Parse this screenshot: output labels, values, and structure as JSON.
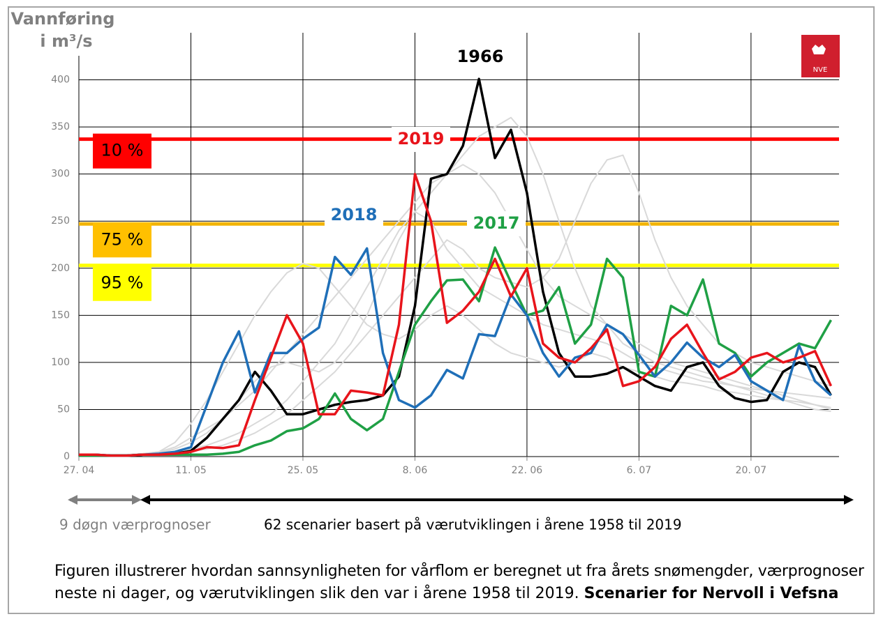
{
  "chart_data": {
    "type": "line",
    "y_label": [
      "Vannføring",
      "i m³/s"
    ],
    "logo": "NVE",
    "x": [
      0,
      2,
      4,
      6,
      8,
      10,
      12,
      14,
      16,
      18,
      20,
      22,
      24,
      26,
      28,
      30,
      32,
      34,
      36,
      38,
      40,
      42,
      44,
      46,
      48,
      50,
      52,
      54,
      56,
      58,
      60,
      62,
      64,
      66,
      68,
      70,
      72,
      74,
      76,
      78,
      80,
      82,
      84,
      86,
      88,
      90,
      92,
      94
    ],
    "xlim": [
      0,
      95
    ],
    "xticks": [
      {
        "value": 0,
        "label": "27. 04"
      },
      {
        "value": 14,
        "label": "11. 05"
      },
      {
        "value": 28,
        "label": "25. 05"
      },
      {
        "value": 42,
        "label": "8. 06"
      },
      {
        "value": 56,
        "label": "22. 06"
      },
      {
        "value": 70,
        "label": "6. 07"
      },
      {
        "value": 84,
        "label": "20. 07"
      }
    ],
    "ylim": [
      0,
      450
    ],
    "yticks": [
      0,
      50,
      100,
      150,
      200,
      250,
      300,
      350,
      400
    ],
    "grid": true,
    "series": [
      {
        "color": "#d9d9d9",
        "values": [
          2,
          2,
          2,
          2,
          3,
          5,
          10,
          20,
          30,
          40,
          55,
          70,
          90,
          110,
          130,
          150,
          170,
          190,
          210,
          230,
          250,
          270,
          290,
          300,
          310,
          300,
          280,
          250,
          220,
          190,
          170,
          160,
          150,
          140,
          130,
          120,
          110,
          100,
          95,
          90,
          85,
          80,
          75,
          70,
          65,
          60,
          55,
          50
        ]
      },
      {
        "color": "#d9d9d9",
        "values": [
          2,
          2,
          2,
          2,
          3,
          5,
          15,
          35,
          60,
          90,
          120,
          150,
          175,
          195,
          205,
          200,
          180,
          160,
          140,
          130,
          125,
          135,
          150,
          160,
          150,
          135,
          120,
          110,
          105,
          100,
          95,
          100,
          110,
          105,
          95,
          90,
          85,
          80,
          78,
          75,
          70,
          68,
          65,
          62,
          60,
          58,
          55,
          52
        ]
      },
      {
        "color": "#d9d9d9",
        "values": [
          1,
          1,
          1,
          1,
          2,
          3,
          5,
          8,
          12,
          18,
          25,
          35,
          45,
          60,
          80,
          100,
          120,
          150,
          180,
          210,
          240,
          260,
          280,
          300,
          320,
          340,
          350,
          360,
          340,
          300,
          250,
          200,
          160,
          140,
          120,
          110,
          100,
          95,
          90,
          85,
          80,
          75,
          70,
          65,
          60,
          55,
          50,
          48
        ]
      },
      {
        "color": "#d9d9d9",
        "values": [
          1,
          1,
          1,
          1,
          2,
          3,
          4,
          6,
          8,
          12,
          18,
          25,
          35,
          45,
          60,
          75,
          90,
          110,
          130,
          150,
          170,
          190,
          210,
          230,
          220,
          200,
          190,
          185,
          180,
          190,
          210,
          250,
          290,
          315,
          320,
          280,
          230,
          190,
          160,
          140,
          120,
          110,
          100,
          95,
          90,
          85,
          80,
          75
        ]
      },
      {
        "color": "#d9d9d9",
        "values": [
          2,
          2,
          2,
          2,
          3,
          4,
          8,
          15,
          25,
          40,
          60,
          80,
          95,
          100,
          95,
          90,
          100,
          120,
          150,
          190,
          230,
          260,
          250,
          220,
          200,
          180,
          170,
          160,
          150,
          140,
          135,
          130,
          125,
          120,
          110,
          100,
          95,
          90,
          85,
          80,
          78,
          75,
          72,
          70,
          68,
          66,
          64,
          62
        ]
      },
      {
        "name": "1966",
        "color": "#000000",
        "values": [
          2,
          2,
          1,
          1,
          2,
          2,
          3,
          6,
          20,
          40,
          60,
          90,
          70,
          45,
          45,
          50,
          55,
          58,
          60,
          65,
          85,
          160,
          295,
          300,
          330,
          401,
          317,
          347,
          280,
          175,
          110,
          85,
          85,
          88,
          95,
          85,
          75,
          70,
          95,
          100,
          75,
          62,
          58,
          60,
          90,
          100,
          95,
          65
        ]
      },
      {
        "name": "2017",
        "color": "#1fa045",
        "values": [
          1,
          1,
          1,
          1,
          2,
          2,
          2,
          2,
          2,
          3,
          5,
          12,
          17,
          27,
          30,
          40,
          67,
          40,
          28,
          40,
          90,
          140,
          165,
          187,
          188,
          165,
          222,
          185,
          150,
          155,
          180,
          120,
          140,
          210,
          190,
          90,
          85,
          160,
          150,
          188,
          120,
          110,
          85,
          100,
          110,
          120,
          115,
          145
        ]
      },
      {
        "name": "2018",
        "color": "#1f6fb8",
        "values": [
          2,
          2,
          1,
          1,
          2,
          3,
          5,
          10,
          55,
          100,
          133,
          68,
          110,
          110,
          125,
          137,
          212,
          193,
          221,
          110,
          60,
          52,
          65,
          92,
          83,
          130,
          128,
          172,
          150,
          110,
          85,
          105,
          110,
          140,
          130,
          108,
          85,
          100,
          121,
          105,
          95,
          108,
          80,
          70,
          60,
          118,
          80,
          65
        ]
      },
      {
        "name": "2019",
        "color": "#e8141b",
        "values": [
          2,
          2,
          1,
          1,
          2,
          2,
          3,
          5,
          10,
          9,
          12,
          60,
          105,
          150,
          120,
          45,
          45,
          70,
          68,
          65,
          140,
          300,
          250,
          142,
          155,
          175,
          210,
          170,
          200,
          120,
          105,
          100,
          115,
          135,
          75,
          80,
          95,
          125,
          140,
          110,
          82,
          90,
          105,
          110,
          100,
          105,
          112,
          75
        ]
      }
    ],
    "thresholds": [
      {
        "label": "10 %",
        "value": 337,
        "color": "#ff0000",
        "box": "#ff0000"
      },
      {
        "label": "75 %",
        "value": 247,
        "color": "#f2b400",
        "box": "#ffc000"
      },
      {
        "label": "95 %",
        "value": 203,
        "color": "#ffff00",
        "box": "#ffff00"
      }
    ],
    "arrow_labels": [
      "9 døgn værprognoser",
      "62 scenarier basert på værutviklingen i årene 1958 til 2019"
    ],
    "caption": [
      "Figuren illustrerer hvordan sannsynligheten for vårflom er beregnet ut fra årets snømengder, værprognoser",
      "neste ni dager, og værutviklingen slik den var i årene 1958 til 2019.",
      "Scenarier for Nervoll i Vefsna"
    ]
  }
}
